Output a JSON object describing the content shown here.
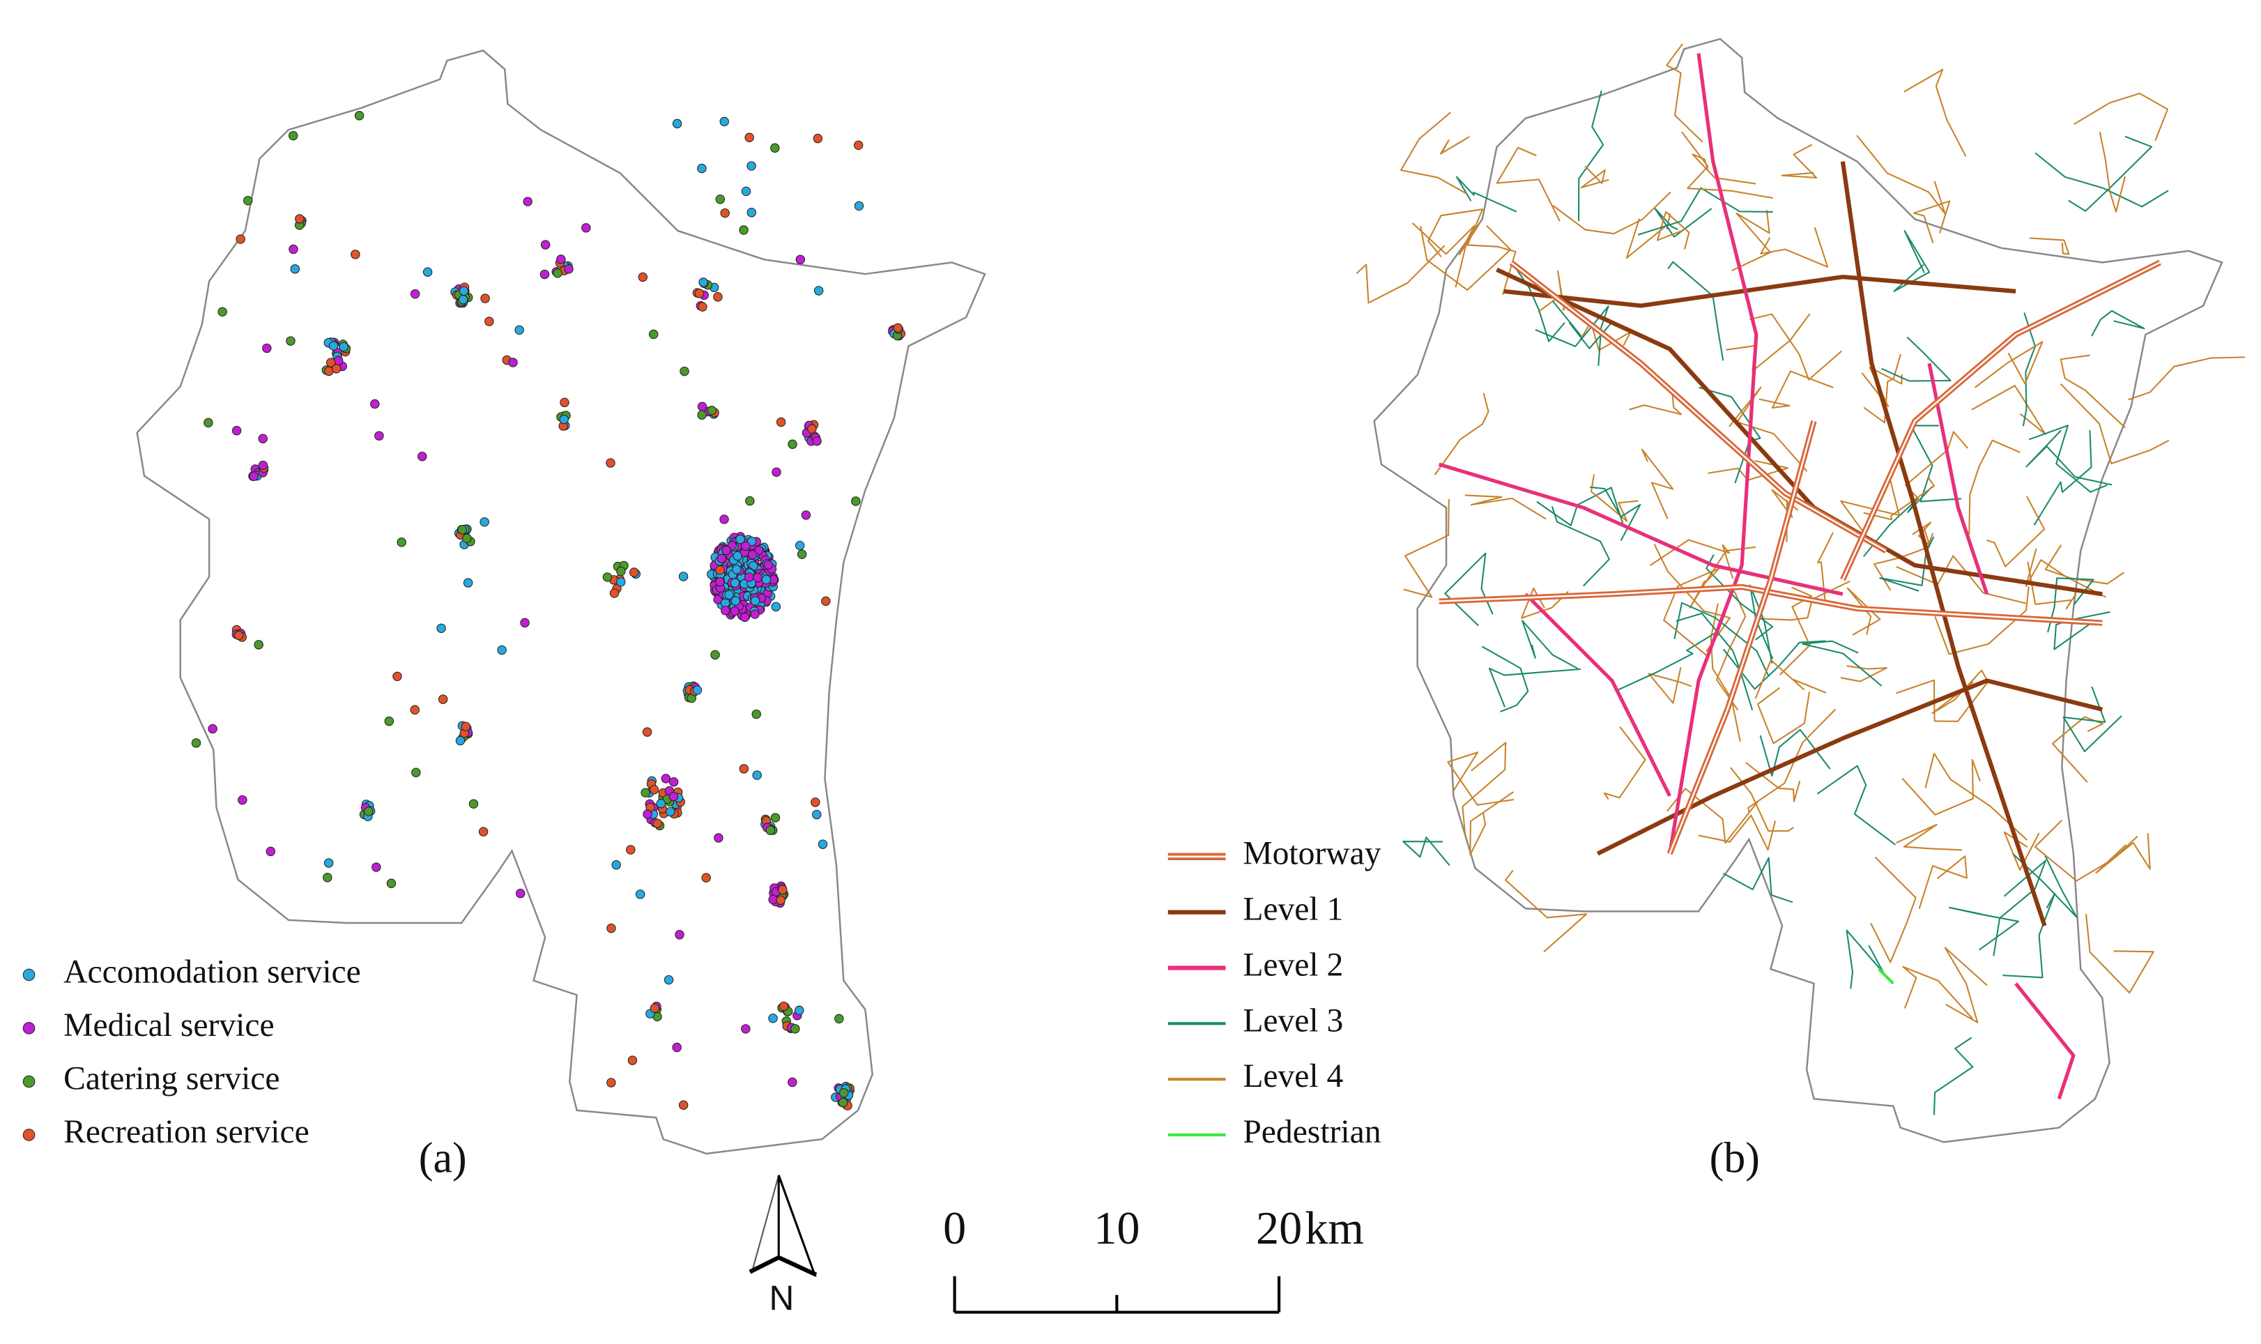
{
  "panels": [
    {
      "label": "(a)",
      "legend": [
        {
          "name": "Accomodation service",
          "color": "#29a8e0"
        },
        {
          "name": "Medical service",
          "color": "#c01fd4"
        },
        {
          "name": "Catering service",
          "color": "#4b9a2a"
        },
        {
          "name": "Recreation service",
          "color": "#e2522a"
        }
      ]
    },
    {
      "label": "(b)",
      "legend": [
        {
          "name": "Motorway",
          "color": "#d9683a"
        },
        {
          "name": "Level 1",
          "color": "#8b3a10"
        },
        {
          "name": "Level 2",
          "color": "#e8307a"
        },
        {
          "name": "Level 3",
          "color": "#1a8a6a"
        },
        {
          "name": "Level 4",
          "color": "#c8822a"
        },
        {
          "name": "Pedestrian",
          "color": "#3ee83e"
        }
      ]
    }
  ],
  "north_arrow": {
    "label": "N"
  },
  "scale_bar": {
    "ticks": [
      0,
      10,
      20
    ],
    "unit": "km"
  }
}
